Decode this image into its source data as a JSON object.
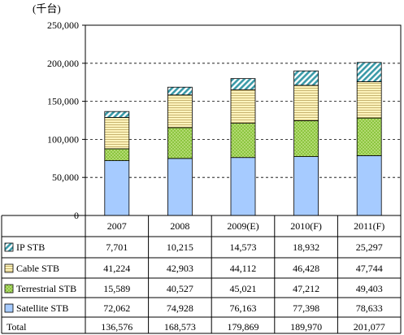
{
  "chart_data": {
    "type": "bar",
    "stacked": true,
    "unit_label": "(千台)",
    "categories": [
      "2007",
      "2008",
      "2009(E)",
      "2010(F)",
      "2011(F)"
    ],
    "series": [
      {
        "name": "Satellite STB",
        "values": [
          72062,
          74928,
          76163,
          77398,
          78633
        ],
        "color": "#a6cbff",
        "pattern": "solid"
      },
      {
        "name": "Terrestrial STB",
        "values": [
          15589,
          40527,
          45021,
          47212,
          49403
        ],
        "color": "#8cc63f",
        "pattern": "dots"
      },
      {
        "name": "Cable STB",
        "values": [
          41224,
          42903,
          44112,
          46428,
          47744
        ],
        "color": "#fff2b0",
        "pattern": "hlines"
      },
      {
        "name": "IP STB",
        "values": [
          7701,
          10215,
          14573,
          18932,
          25297
        ],
        "color": "#7ecbd6",
        "pattern": "diagonal"
      }
    ],
    "table_row_order": [
      "IP STB",
      "Cable STB",
      "Terrestrial STB",
      "Satellite STB"
    ],
    "table_values": {
      "IP STB": [
        "7,701",
        "10,215",
        "14,573",
        "18,932",
        "25,297"
      ],
      "Cable STB": [
        "41,224",
        "42,903",
        "44,112",
        "46,428",
        "47,744"
      ],
      "Terrestrial STB": [
        "15,589",
        "40,527",
        "45,021",
        "47,212",
        "49,403"
      ],
      "Satellite STB": [
        "72,062",
        "74,928",
        "76,163",
        "77,398",
        "78,633"
      ]
    },
    "total_label": "Total",
    "totals": [
      "136,576",
      "168,573",
      "179,869",
      "189,970",
      "201,077"
    ],
    "ylim": [
      0,
      250000
    ],
    "yticks": [
      0,
      50000,
      100000,
      150000,
      200000,
      250000
    ],
    "ytick_labels": [
      "0",
      "50,000",
      "100,000",
      "150,000",
      "200,000",
      "250,000"
    ],
    "grid": "dashed horizontal"
  }
}
